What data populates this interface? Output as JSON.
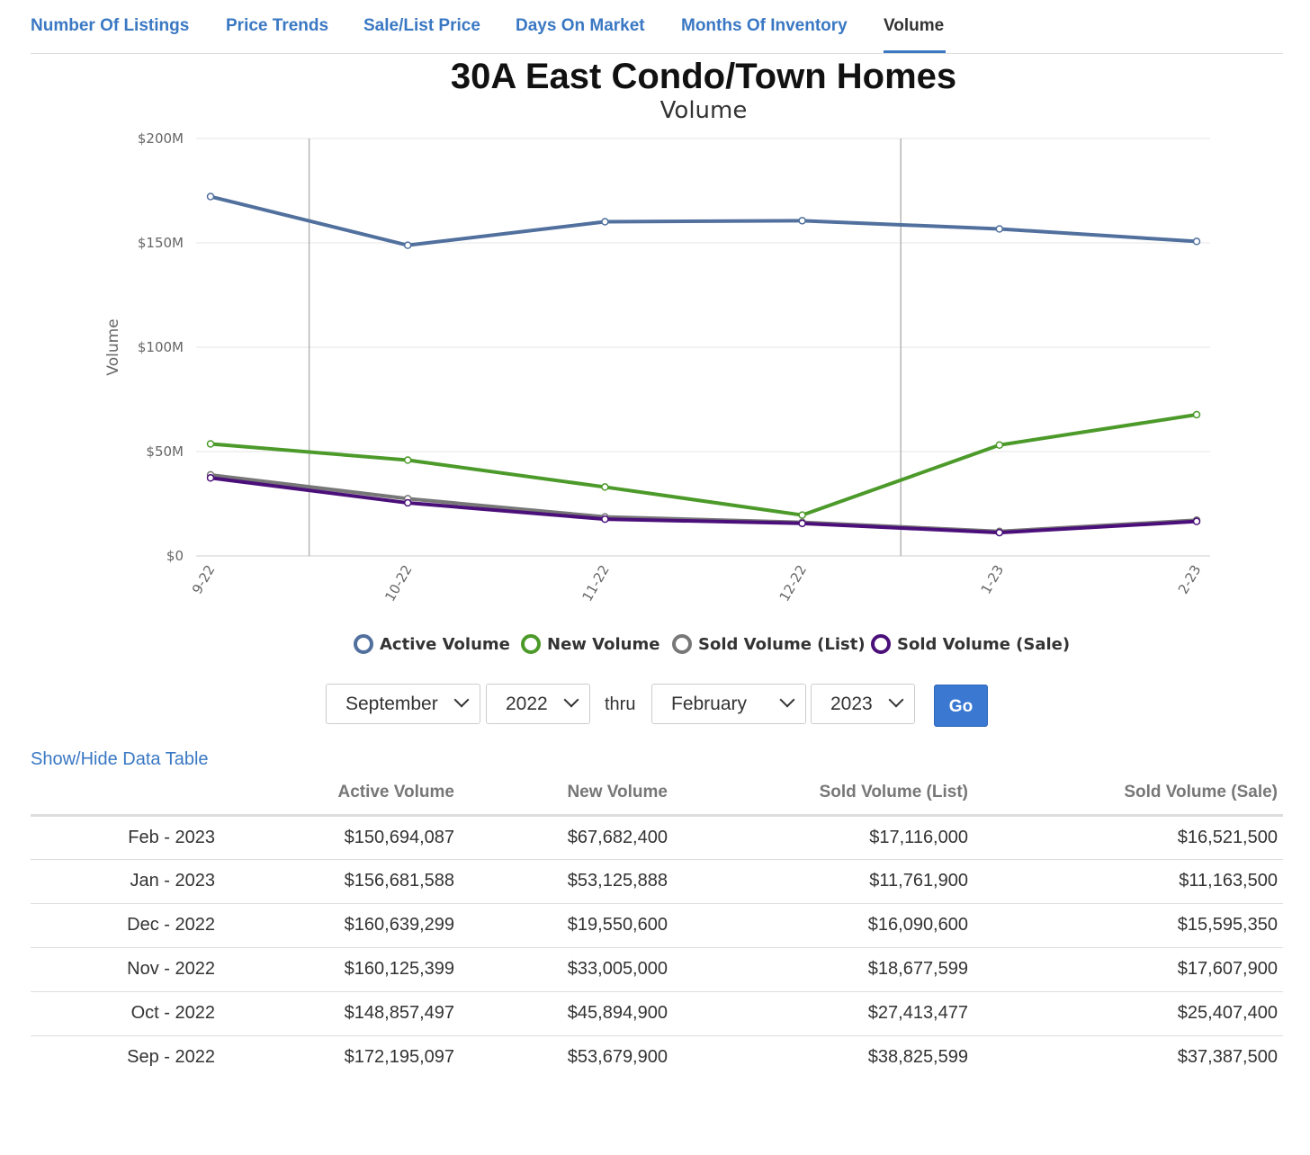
{
  "tabs": [
    {
      "label": "Number Of Listings",
      "active": false
    },
    {
      "label": "Price Trends",
      "active": false
    },
    {
      "label": "Sale/List Price",
      "active": false
    },
    {
      "label": "Days On Market",
      "active": false
    },
    {
      "label": "Months Of Inventory",
      "active": false
    },
    {
      "label": "Volume",
      "active": true
    }
  ],
  "colors": {
    "accent": "#3a78c3",
    "active_volume": "#51709d",
    "new_volume": "#4c9a2a",
    "sold_list": "#777777",
    "sold_sale": "#4b0f7a"
  },
  "chart_data": {
    "type": "line",
    "title": "30A East Condo/Town Homes",
    "subtitle": "Volume",
    "ylabel": "Volume",
    "xlabel": "",
    "ylim": [
      0,
      200000000
    ],
    "yticks": [
      0,
      50000000,
      100000000,
      150000000,
      200000000
    ],
    "ytick_labels": [
      "$0",
      "$50M",
      "$100M",
      "$150M",
      "$200M"
    ],
    "categories": [
      "9-22",
      "10-22",
      "11-22",
      "12-22",
      "1-23",
      "2-23"
    ],
    "vertical_markers_between": [
      [
        0,
        1
      ],
      [
        3,
        4
      ]
    ],
    "legend_position": "bottom-center",
    "series": [
      {
        "name": "Active Volume",
        "color": "#51709d",
        "values": [
          172195097,
          148857497,
          160125399,
          160639299,
          156681588,
          150694087
        ]
      },
      {
        "name": "New Volume",
        "color": "#4c9a2a",
        "values": [
          53679900,
          45894900,
          33005000,
          19550600,
          53125888,
          67682400
        ]
      },
      {
        "name": "Sold Volume (List)",
        "color": "#777777",
        "values": [
          38825599,
          27413477,
          18677599,
          16090600,
          11761900,
          17116000
        ]
      },
      {
        "name": "Sold Volume (Sale)",
        "color": "#4b0f7a",
        "values": [
          37387500,
          25407400,
          17607900,
          15595350,
          11163500,
          16521500
        ]
      }
    ]
  },
  "controls": {
    "start_month": "September",
    "start_year": "2022",
    "thru_label": "thru",
    "end_month": "February",
    "end_year": "2023",
    "go_label": "Go"
  },
  "table": {
    "toggle_label": "Show/Hide Data Table",
    "headers": [
      "",
      "Active Volume",
      "New Volume",
      "Sold Volume (List)",
      "Sold Volume (Sale)"
    ],
    "rows": [
      [
        "Feb - 2023",
        "$150,694,087",
        "$67,682,400",
        "$17,116,000",
        "$16,521,500"
      ],
      [
        "Jan - 2023",
        "$156,681,588",
        "$53,125,888",
        "$11,761,900",
        "$11,163,500"
      ],
      [
        "Dec - 2022",
        "$160,639,299",
        "$19,550,600",
        "$16,090,600",
        "$15,595,350"
      ],
      [
        "Nov - 2022",
        "$160,125,399",
        "$33,005,000",
        "$18,677,599",
        "$17,607,900"
      ],
      [
        "Oct - 2022",
        "$148,857,497",
        "$45,894,900",
        "$27,413,477",
        "$25,407,400"
      ],
      [
        "Sep - 2022",
        "$172,195,097",
        "$53,679,900",
        "$38,825,599",
        "$37,387,500"
      ]
    ]
  }
}
